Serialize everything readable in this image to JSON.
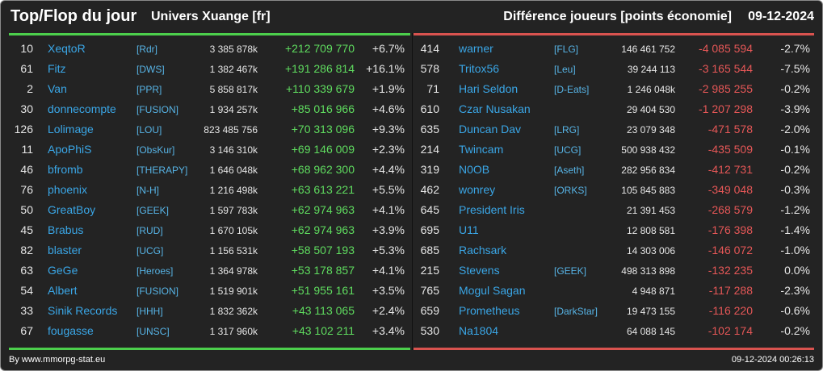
{
  "header": {
    "title": "Top/Flop du jour",
    "universe": "Univers Xuange [fr]",
    "metric": "Différence joueurs [points économie]",
    "date": "09-12-2024"
  },
  "colors": {
    "top": "#4ccf4c",
    "flop": "#d9534f",
    "name": "#3aa6e6",
    "background": "#232323"
  },
  "top": [
    {
      "rank": "10",
      "name": "XeqtoR",
      "tag": "[Rdr]",
      "score": "3 385 878k",
      "diff": "+212 709 770",
      "pct": "+6.7%"
    },
    {
      "rank": "61",
      "name": "Fitz",
      "tag": "[DWS]",
      "score": "1 382 467k",
      "diff": "+191 286 814",
      "pct": "+16.1%"
    },
    {
      "rank": "2",
      "name": "Van",
      "tag": "[PPR]",
      "score": "5 858 817k",
      "diff": "+110 339 679",
      "pct": "+1.9%"
    },
    {
      "rank": "30",
      "name": "donnecompte",
      "tag": "[FUSION]",
      "score": "1 934 257k",
      "diff": "+85 016 966",
      "pct": "+4.6%"
    },
    {
      "rank": "126",
      "name": "Lolimage",
      "tag": "[LOU]",
      "score": "823 485 756",
      "diff": "+70 313 096",
      "pct": "+9.3%"
    },
    {
      "rank": "11",
      "name": "ApoPhiS",
      "tag": "[ObsKur]",
      "score": "3 146 310k",
      "diff": "+69 146 009",
      "pct": "+2.3%"
    },
    {
      "rank": "46",
      "name": "bfromb",
      "tag": "[THERAPY]",
      "score": "1 646 048k",
      "diff": "+68 962 300",
      "pct": "+4.4%"
    },
    {
      "rank": "76",
      "name": "phoenix",
      "tag": "[N-H]",
      "score": "1 216 498k",
      "diff": "+63 613 221",
      "pct": "+5.5%"
    },
    {
      "rank": "50",
      "name": "GreatBoy",
      "tag": "[GEEK]",
      "score": "1 597 783k",
      "diff": "+62 974 963",
      "pct": "+4.1%"
    },
    {
      "rank": "45",
      "name": "Brabus",
      "tag": "[RUD]",
      "score": "1 670 105k",
      "diff": "+62 974 963",
      "pct": "+3.9%"
    },
    {
      "rank": "82",
      "name": "blaster",
      "tag": "[UCG]",
      "score": "1 156 531k",
      "diff": "+58 507 193",
      "pct": "+5.3%"
    },
    {
      "rank": "63",
      "name": "GeGe",
      "tag": "[Heroes]",
      "score": "1 364 978k",
      "diff": "+53 178 857",
      "pct": "+4.1%"
    },
    {
      "rank": "54",
      "name": "Albert",
      "tag": "[FUSION]",
      "score": "1 519 901k",
      "diff": "+51 955 161",
      "pct": "+3.5%"
    },
    {
      "rank": "33",
      "name": "Sinik Records",
      "tag": "[HHH]",
      "score": "1 832 362k",
      "diff": "+43 113 065",
      "pct": "+2.4%"
    },
    {
      "rank": "67",
      "name": "fougasse",
      "tag": "[UNSC]",
      "score": "1 317 960k",
      "diff": "+43 102 211",
      "pct": "+3.4%"
    }
  ],
  "flop": [
    {
      "rank": "414",
      "name": "warner",
      "tag": "[FLG]",
      "score": "146 461 752",
      "diff": "-4 085 594",
      "pct": "-2.7%"
    },
    {
      "rank": "578",
      "name": "Tritox56",
      "tag": "[Leu]",
      "score": "39 244 113",
      "diff": "-3 165 544",
      "pct": "-7.5%"
    },
    {
      "rank": "71",
      "name": "Hari Seldon",
      "tag": "[D-Eats]",
      "score": "1 246 048k",
      "diff": "-2 985 255",
      "pct": "-0.2%"
    },
    {
      "rank": "610",
      "name": "Czar Nusakan",
      "tag": "",
      "score": "29 404 530",
      "diff": "-1 207 298",
      "pct": "-3.9%"
    },
    {
      "rank": "635",
      "name": "Duncan Dav",
      "tag": "[LRG]",
      "score": "23 079 348",
      "diff": "-471 578",
      "pct": "-2.0%"
    },
    {
      "rank": "214",
      "name": "Twincam",
      "tag": "[UCG]",
      "score": "500 938 432",
      "diff": "-435 509",
      "pct": "-0.1%"
    },
    {
      "rank": "319",
      "name": "N0OB",
      "tag": "[Aseth]",
      "score": "282 956 834",
      "diff": "-412 731",
      "pct": "-0.2%"
    },
    {
      "rank": "462",
      "name": "wonrey",
      "tag": "[ORKS]",
      "score": "105 845 883",
      "diff": "-349 048",
      "pct": "-0.3%"
    },
    {
      "rank": "645",
      "name": "President Iris",
      "tag": "",
      "score": "21 391 453",
      "diff": "-268 579",
      "pct": "-1.2%"
    },
    {
      "rank": "695",
      "name": "U11",
      "tag": "",
      "score": "12 808 581",
      "diff": "-176 398",
      "pct": "-1.4%"
    },
    {
      "rank": "685",
      "name": "Rachsark",
      "tag": "",
      "score": "14 303 006",
      "diff": "-146 072",
      "pct": "-1.0%"
    },
    {
      "rank": "215",
      "name": "Stevens",
      "tag": "[GEEK]",
      "score": "498 313 898",
      "diff": "-132 235",
      "pct": "0.0%"
    },
    {
      "rank": "765",
      "name": "Mogul Sagan",
      "tag": "",
      "score": "4 948 871",
      "diff": "-117 288",
      "pct": "-2.3%"
    },
    {
      "rank": "659",
      "name": "Prometheus",
      "tag": "[DarkStar]",
      "score": "19 473 155",
      "diff": "-116 220",
      "pct": "-0.6%"
    },
    {
      "rank": "530",
      "name": "Na1804",
      "tag": "",
      "score": "64 088 145",
      "diff": "-102 174",
      "pct": "-0.2%"
    }
  ],
  "footer": {
    "source": "By www.mmorpg-stat.eu",
    "timestamp": "09-12-2024 00:26:13"
  }
}
